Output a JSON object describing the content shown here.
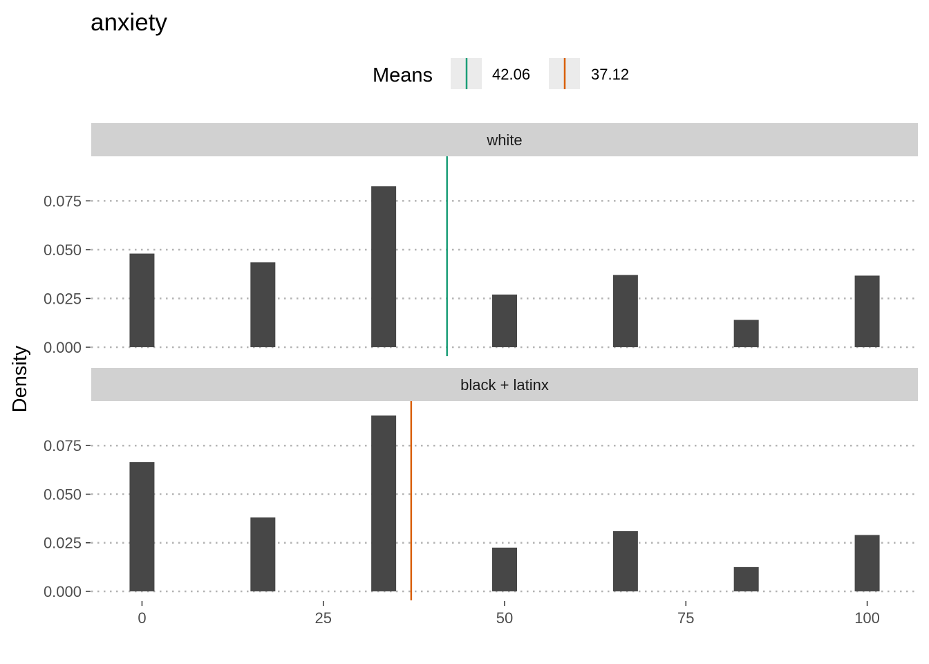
{
  "chart_data": {
    "type": "bar",
    "title": "anxiety",
    "xlabel": "",
    "ylabel": "Density",
    "xlim": [
      -7,
      107
    ],
    "ylim": [
      0,
      0.095
    ],
    "x_ticks": [
      0,
      25,
      50,
      75,
      100
    ],
    "y_ticks": [
      0,
      0.025,
      0.05,
      0.075
    ],
    "y_tick_labels": [
      "0.000",
      "0.025",
      "0.050",
      "0.075"
    ],
    "grid": "horizontal-dotted",
    "legend": {
      "title": "Means",
      "position": "top",
      "entries": [
        {
          "label": "42.06",
          "color": "#1b9e77"
        },
        {
          "label": "37.12",
          "color": "#d95f02"
        }
      ]
    },
    "bar_color": "#474747",
    "x": [
      0,
      16.67,
      33.33,
      50,
      66.67,
      83.33,
      100
    ],
    "panels": [
      {
        "label": "white",
        "values": [
          0.048,
          0.0435,
          0.0825,
          0.027,
          0.037,
          0.014,
          0.0367
        ],
        "mean": 42.06,
        "mean_color": "#1b9e77"
      },
      {
        "label": "black + latinx",
        "values": [
          0.0665,
          0.038,
          0.0905,
          0.0225,
          0.031,
          0.0125,
          0.029
        ],
        "mean": 37.12,
        "mean_color": "#d95f02"
      }
    ]
  }
}
